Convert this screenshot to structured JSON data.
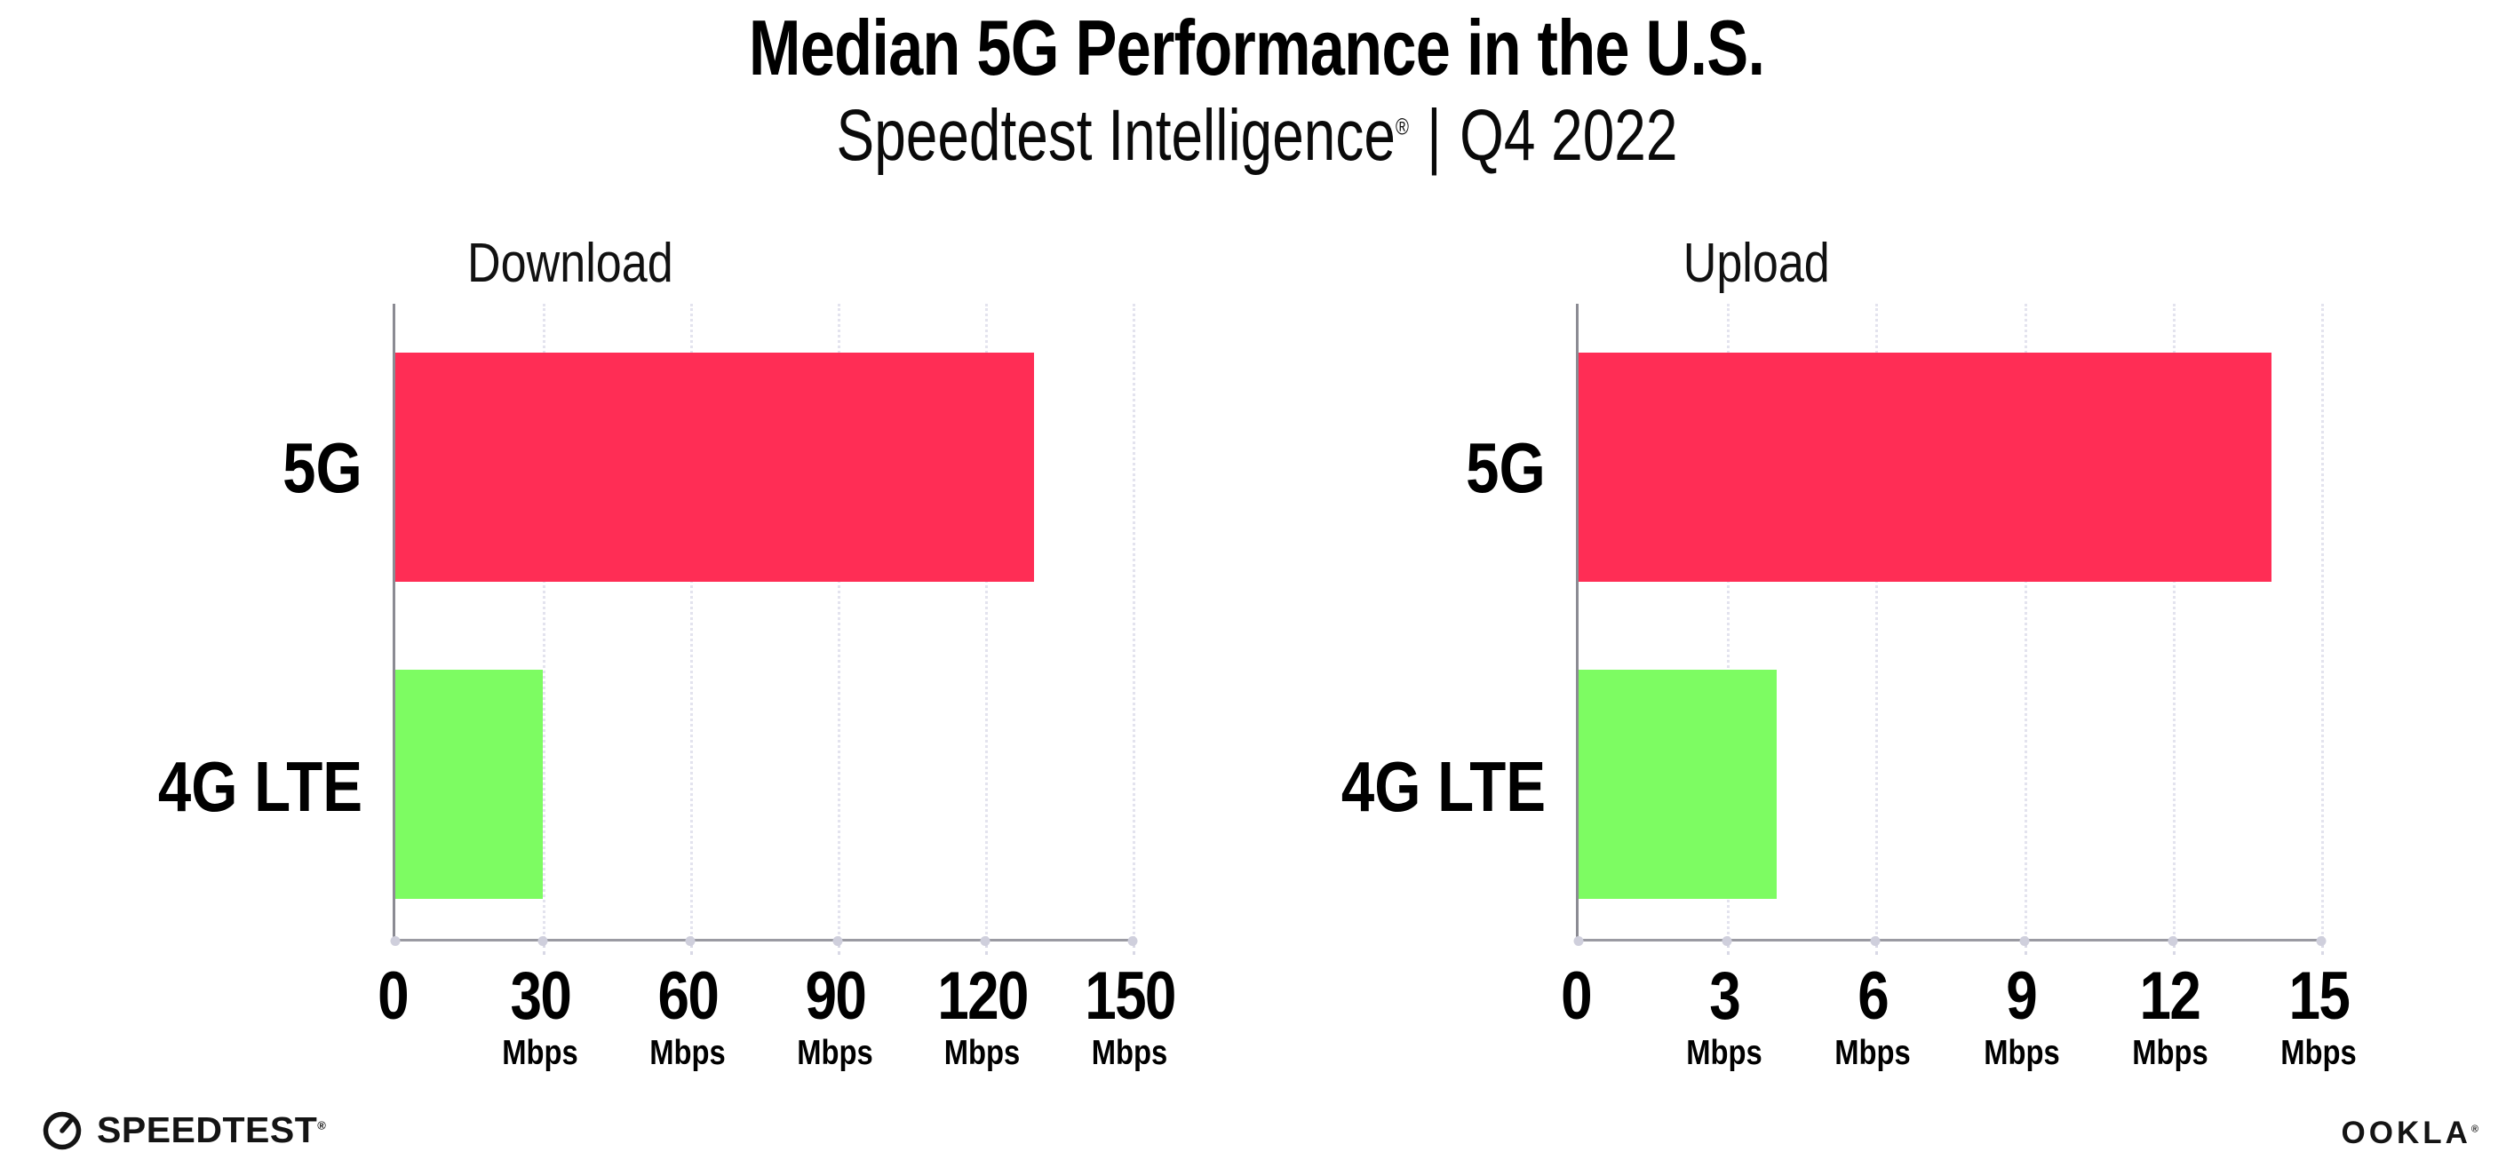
{
  "header": {
    "title": "Median 5G Performance in the U.S.",
    "subtitle_brand": "Speedtest Intelligence",
    "subtitle_reg": "®",
    "subtitle_separator": "|",
    "subtitle_period": "Q4 2022"
  },
  "chart_data": [
    {
      "type": "bar",
      "orientation": "horizontal",
      "title": "Download",
      "categories": [
        "5G",
        "4G LTE"
      ],
      "values": [
        130,
        30
      ],
      "unit": "Mbps",
      "xlim": [
        0,
        150
      ],
      "xticks": [
        0,
        30,
        60,
        90,
        120,
        150
      ],
      "bar_colors": [
        "#ff2d55",
        "#7dfc62"
      ],
      "grid": "dotted vertical gridlines at each tick",
      "legend": "none"
    },
    {
      "type": "bar",
      "orientation": "horizontal",
      "title": "Upload",
      "categories": [
        "5G",
        "4G LTE"
      ],
      "values": [
        14,
        4
      ],
      "unit": "Mbps",
      "xlim": [
        0,
        15
      ],
      "xticks": [
        0,
        3,
        6,
        9,
        12,
        15
      ],
      "bar_colors": [
        "#ff2d55",
        "#7dfc62"
      ],
      "grid": "dotted vertical gridlines at each tick",
      "legend": "none"
    }
  ],
  "footer": {
    "speedtest_label": "SPEEDTEST",
    "speedtest_reg": "®",
    "ookla_label": "OOKLA",
    "ookla_reg": "®"
  },
  "colors": {
    "bar_5g": "#ff2d55",
    "bar_4g_lte": "#7dfc62",
    "axis_line": "#9a9aa2",
    "gridline": "#e3e3ee",
    "text": "#000000"
  }
}
